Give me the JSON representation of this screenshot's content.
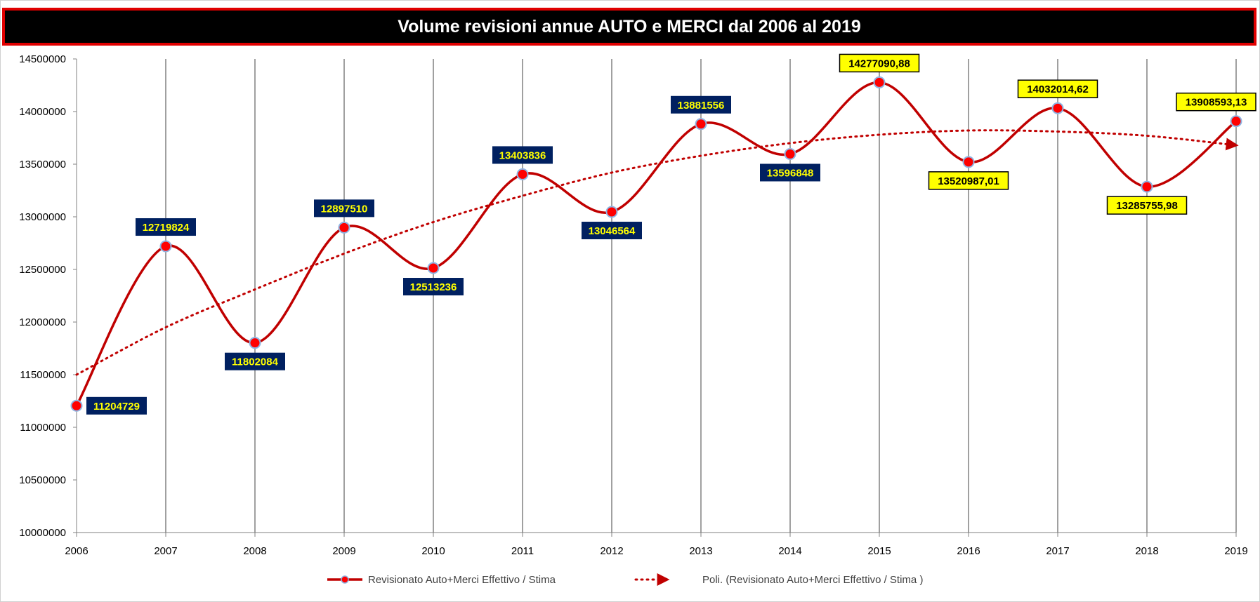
{
  "chart_data": {
    "type": "line",
    "title": "Volume revisioni annue AUTO e MERCI dal 2006 al 2019",
    "x": [
      "2006",
      "2007",
      "2008",
      "2009",
      "2010",
      "2011",
      "2012",
      "2013",
      "2014",
      "2015",
      "2016",
      "2017",
      "2018",
      "2019"
    ],
    "ylim": [
      10000000,
      14500000
    ],
    "yticks": [
      "10000000",
      "10500000",
      "11000000",
      "11500000",
      "12000000",
      "12500000",
      "13000000",
      "13500000",
      "14000000",
      "14500000"
    ],
    "grid": "vertical",
    "legend_position": "bottom",
    "series": [
      {
        "name": "Revisionato Auto+Merci Effettivo / Stima",
        "values": [
          11204729,
          12719824,
          11802084,
          12897510,
          12513236,
          13403836,
          13046564,
          13881556,
          13596848,
          14277090.88,
          13520987.01,
          14032014.62,
          13285755.98,
          13908593.13
        ],
        "labels": [
          "11204729",
          "12719824",
          "11802084",
          "12897510",
          "12513236",
          "13403836",
          "13046564",
          "13881556",
          "13596848",
          "14277090,88",
          "13520987,01",
          "14032014,62",
          "13285755,98",
          "13908593,13"
        ],
        "label_styles": [
          "actual",
          "actual",
          "actual",
          "actual",
          "actual",
          "actual",
          "actual",
          "actual",
          "actual",
          "estimate",
          "estimate",
          "estimate",
          "estimate",
          "estimate"
        ],
        "label_positions": [
          "right",
          "above",
          "below",
          "above",
          "below",
          "above",
          "below",
          "above",
          "below",
          "above",
          "below",
          "above",
          "below",
          "above"
        ],
        "color": "#c00000",
        "marker_color": "#ff0000",
        "marker_border": "#8eb4e3"
      },
      {
        "name": "Poli. (Revisionato Auto+Merci Effettivo / Stima  )",
        "type": "polynomial-trendline",
        "values": [
          11500000,
          11950000,
          12310000,
          12650000,
          12950000,
          13200000,
          13420000,
          13580000,
          13700000,
          13780000,
          13820000,
          13810000,
          13770000,
          13680000
        ],
        "color": "#c00000",
        "style": "dotted"
      }
    ],
    "label_colors": {
      "actual_bg": "#002060",
      "actual_text": "#ffff00",
      "estimate_bg": "#ffff00",
      "estimate_text": "#000000"
    }
  }
}
